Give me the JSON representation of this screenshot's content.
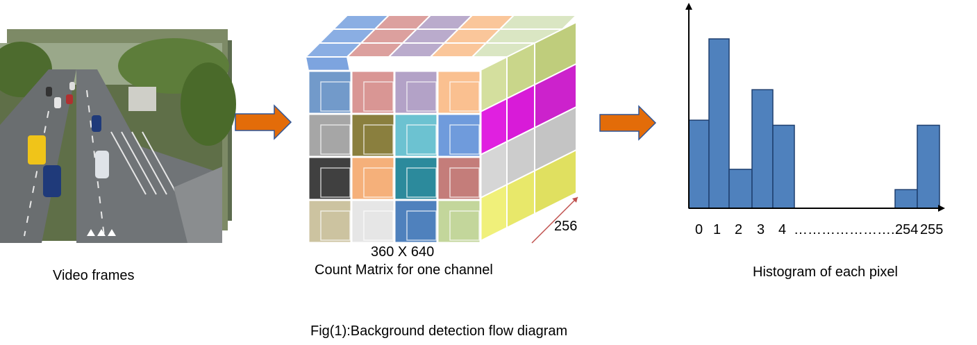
{
  "captions": {
    "video_frames": "Video frames",
    "matrix_size": "360 X 640",
    "count_matrix": "Count Matrix for one channel",
    "depth": "256",
    "histogram": "Histogram of each pixel",
    "figure": "Fig(1):Background detection flow diagram"
  },
  "histogram_ticks": {
    "t0": "0",
    "t1": "1",
    "t2": "2",
    "t3": "3",
    "t4": "4",
    "dots": "…………………..",
    "t254": "254",
    "t255": "255"
  },
  "colors": {
    "arrow_fill": "#E36C09",
    "arrow_stroke": "#2F5597",
    "bar_fill": "#4F81BD",
    "bar_stroke": "#1F3F6F",
    "axis": "#000000",
    "depth_arrow": "#C0504D"
  },
  "chart_data": {
    "type": "bar",
    "x": [
      "0",
      "1",
      "2",
      "3",
      "4",
      "254",
      "255"
    ],
    "values": [
      0.52,
      1.0,
      0.23,
      0.7,
      0.49,
      0.11,
      0.49
    ]
  }
}
